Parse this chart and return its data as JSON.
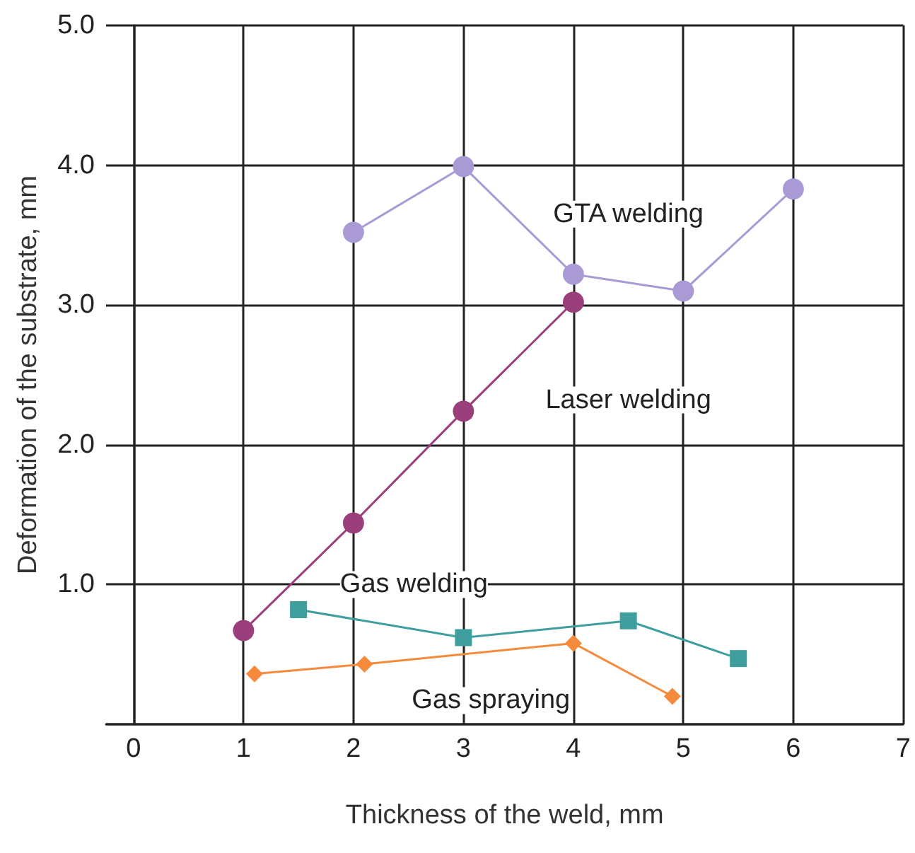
{
  "chart_data": {
    "type": "line",
    "xlabel": "Thickness of the weld, mm",
    "ylabel": "Deformation of the substrate, mm",
    "xlim": [
      -0.25,
      7
    ],
    "xticks": [
      0,
      1,
      2,
      3,
      4,
      5,
      6,
      7
    ],
    "ylim": [
      0,
      5
    ],
    "yticks": [
      {
        "value": 0,
        "label": null
      },
      {
        "value": 1,
        "label": "1.0"
      },
      {
        "value": 2,
        "label": "2.0"
      },
      {
        "value": 3,
        "label": "3.0"
      },
      {
        "value": 4,
        "label": "4.0"
      },
      {
        "value": 5,
        "label": "5.0"
      }
    ],
    "grid": true,
    "legend": false,
    "series": [
      {
        "name": "GTA welding",
        "color": "#a99ad6",
        "marker": "circle",
        "x": [
          2,
          3,
          4,
          5,
          6
        ],
        "values": [
          3.52,
          3.99,
          3.22,
          3.1,
          3.83
        ]
      },
      {
        "name": "Laser welding",
        "color": "#9b3f7c",
        "marker": "circle",
        "x": [
          1,
          2,
          3,
          4
        ],
        "values": [
          0.67,
          1.44,
          2.24,
          3.02
        ]
      },
      {
        "name": "Gas welding",
        "color": "#3f9e9e",
        "marker": "square",
        "x": [
          1.5,
          3,
          4.5,
          5.5
        ],
        "values": [
          0.82,
          0.62,
          0.74,
          0.47
        ]
      },
      {
        "name": "Gas spraying",
        "color": "#f58a3c",
        "marker": "diamond",
        "x": [
          1.1,
          2.1,
          4,
          4.9
        ],
        "values": [
          0.36,
          0.43,
          0.58,
          0.2
        ]
      }
    ]
  }
}
